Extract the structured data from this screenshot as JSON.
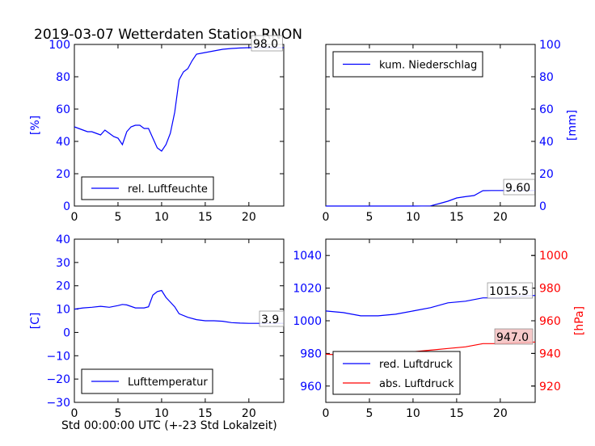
{
  "title": "2019-03-07 Wetterdaten Station RNON",
  "xlabel": "Std 00:00:00 UTC (+-23 Std Lokalzeit)",
  "colors": {
    "blue": "#0000ff",
    "red": "#ff0000",
    "black": "#000000",
    "red_box": "#f4c0c0"
  },
  "chart_data": [
    {
      "type": "line",
      "panel": "top-left",
      "ylabel": "[%]",
      "xlim": [
        0,
        24
      ],
      "ylim": [
        0,
        100
      ],
      "xticks": [
        "0",
        "5",
        "10",
        "15",
        "20"
      ],
      "yticks": [
        "0",
        "20",
        "40",
        "60",
        "80",
        "100"
      ],
      "legend": "lower-left",
      "annotation": "98.0",
      "series": [
        {
          "name": "rel. Luftfeuchte",
          "color": "#0000ff",
          "x": [
            0,
            0.5,
            1,
            1.5,
            2,
            2.5,
            3,
            3.5,
            4,
            4.5,
            5,
            5.5,
            6,
            6.5,
            7,
            7.5,
            8,
            8.5,
            9,
            9.5,
            10,
            10.5,
            11,
            11.5,
            12,
            12.5,
            13,
            13.5,
            14,
            15,
            16,
            17,
            18,
            19,
            20,
            21,
            22,
            23,
            24
          ],
          "y": [
            49,
            48,
            47,
            46,
            46,
            45,
            44,
            47,
            45,
            43,
            42,
            38,
            46,
            49,
            50,
            50,
            48,
            48,
            42,
            36,
            34,
            38,
            45,
            58,
            78,
            83,
            85,
            90,
            94,
            95,
            96,
            97,
            97.5,
            97.8,
            98,
            98,
            98,
            98,
            98
          ]
        }
      ]
    },
    {
      "type": "line",
      "panel": "top-right",
      "ylabel": "[mm]",
      "xlim": [
        0,
        24
      ],
      "ylim": [
        0,
        100
      ],
      "xticks": [
        "0",
        "5",
        "10",
        "15",
        "20"
      ],
      "yticks": [
        "0",
        "20",
        "40",
        "60",
        "80",
        "100"
      ],
      "legend": "upper-left",
      "annotation": "9.60",
      "series": [
        {
          "name": "kum. Niederschlag",
          "color": "#0000ff",
          "x": [
            0,
            5,
            10,
            12,
            13,
            14,
            15,
            16,
            17,
            18,
            19,
            20,
            22,
            24
          ],
          "y": [
            0,
            0,
            0,
            0.1,
            1.5,
            3,
            5,
            5.8,
            6.5,
            9.5,
            9.6,
            9.6,
            9.6,
            9.6
          ]
        }
      ]
    },
    {
      "type": "line",
      "panel": "bottom-left",
      "ylabel": "[C]",
      "xlim": [
        0,
        24
      ],
      "ylim": [
        -30,
        40
      ],
      "xticks": [
        "0",
        "5",
        "10",
        "15",
        "20"
      ],
      "yticks": [
        "−30",
        "−20",
        "−10",
        "0",
        "10",
        "20",
        "30",
        "40"
      ],
      "legend": "lower-left",
      "annotation": "3.9",
      "series": [
        {
          "name": "Lufttemperatur",
          "color": "#0000ff",
          "x": [
            0,
            1,
            2,
            3,
            4,
            5,
            5.5,
            6,
            7,
            8,
            8.5,
            9,
            9.5,
            10,
            10.5,
            11,
            11.5,
            12,
            13,
            14,
            15,
            16,
            17,
            18,
            19,
            20,
            21,
            22,
            23,
            24
          ],
          "y": [
            10,
            10.5,
            10.8,
            11.2,
            10.8,
            11.5,
            12,
            11.8,
            10.5,
            10.5,
            11,
            16,
            17.5,
            18,
            15,
            13,
            11,
            8,
            6.5,
            5.5,
            5,
            5,
            4.8,
            4.2,
            4,
            3.9,
            3.9,
            3.9,
            3.9,
            3.9
          ]
        }
      ]
    },
    {
      "type": "line",
      "panel": "bottom-right",
      "ylabel": "[hPa]",
      "xlim": [
        0,
        24
      ],
      "ylim_left": [
        950,
        1050
      ],
      "ylim_right": [
        910,
        1010
      ],
      "xticks": [
        "0",
        "5",
        "10",
        "15",
        "20"
      ],
      "yticks_left": [
        "960",
        "980",
        "1000",
        "1020",
        "1040"
      ],
      "yticks_right": [
        "920",
        "940",
        "960",
        "980",
        "1000"
      ],
      "legend": "lower-left",
      "annotations": [
        "1015.5",
        "947.0"
      ],
      "series": [
        {
          "name": "red. Luftdruck",
          "color": "#0000ff",
          "axis": "left",
          "x": [
            0,
            2,
            4,
            6,
            8,
            10,
            12,
            14,
            16,
            18,
            20,
            22,
            24
          ],
          "y": [
            1006,
            1005,
            1003,
            1003,
            1004,
            1006,
            1008,
            1011,
            1012,
            1014,
            1014,
            1015,
            1015.5
          ]
        },
        {
          "name": "abs. Luftdruck",
          "color": "#ff0000",
          "axis": "right",
          "x": [
            0,
            2,
            4,
            6,
            8,
            10,
            12,
            14,
            16,
            18,
            20,
            22,
            24
          ],
          "y": [
            939.5,
            939,
            938,
            937.5,
            938,
            941,
            942,
            943,
            944,
            946,
            946,
            946.5,
            947
          ]
        }
      ]
    }
  ]
}
